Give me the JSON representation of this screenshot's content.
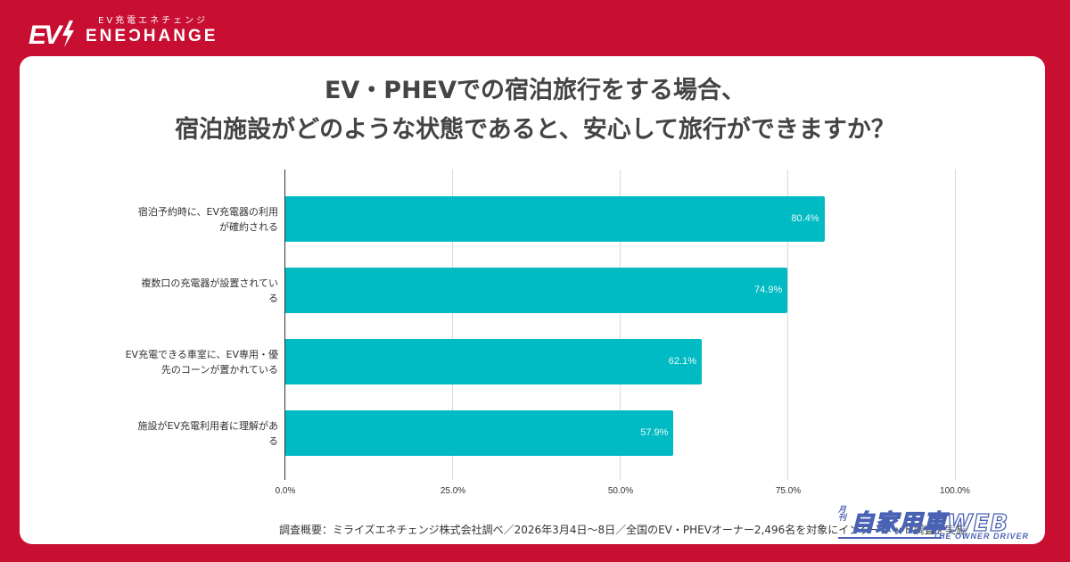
{
  "brand": {
    "tagline": "EV充電エネチェンジ",
    "mark": "EV",
    "wordmark": "ENEƆHANGE",
    "colors": {
      "background": "#c80f32",
      "text": "#ffffff"
    }
  },
  "title": {
    "line1": "EV・PHEVでの宿泊旅行をする場合、",
    "line2": "宿泊施設がどのような状態であると、安心して旅行ができますか？"
  },
  "footnote": "調査概要：ミライズエネチェンジ株式会社調べ／2026年3月4日〜8日／全国のEV・PHEVオーナー2,496名を対象にインターネット調査を実施",
  "watermark": {
    "monthly": "月刊",
    "main": "自家用車WEB",
    "sub": "THE OWNER DRIVER"
  },
  "chart_data": {
    "type": "bar",
    "orientation": "horizontal",
    "title": "EV・PHEVでの宿泊旅行をする場合、宿泊施設がどのような状態であると、安心して旅行ができますか？",
    "xlabel": "",
    "ylabel": "",
    "xlim": [
      0,
      100
    ],
    "grid": true,
    "legend": "none",
    "bar_color": "#00bbc3",
    "categories": [
      "宿泊予約時に、EV充電器の利用が確約される",
      "複数口の充電器が設置されている",
      "EV充電できる車室に、EV専用・優先のコーンが置かれている",
      "施設がEV充電利用者に理解がある"
    ],
    "category_lines": [
      [
        "宿泊予約時に、EV充電器の利用",
        "が確約される"
      ],
      [
        "複数口の充電器が設置されてい",
        "る"
      ],
      [
        "EV充電できる車室に、EV専用・優",
        "先のコーンが置かれている"
      ],
      [
        "施設がEV充電利用者に理解があ",
        "る"
      ]
    ],
    "values": [
      80.4,
      74.9,
      62.1,
      57.9
    ],
    "value_labels": [
      "80.4%",
      "74.9%",
      "62.1%",
      "57.9%"
    ],
    "ticks": [
      0,
      25,
      50,
      75,
      100
    ],
    "tick_labels": [
      "0.0%",
      "25.0%",
      "50.0%",
      "75.0%",
      "100.0%"
    ]
  }
}
